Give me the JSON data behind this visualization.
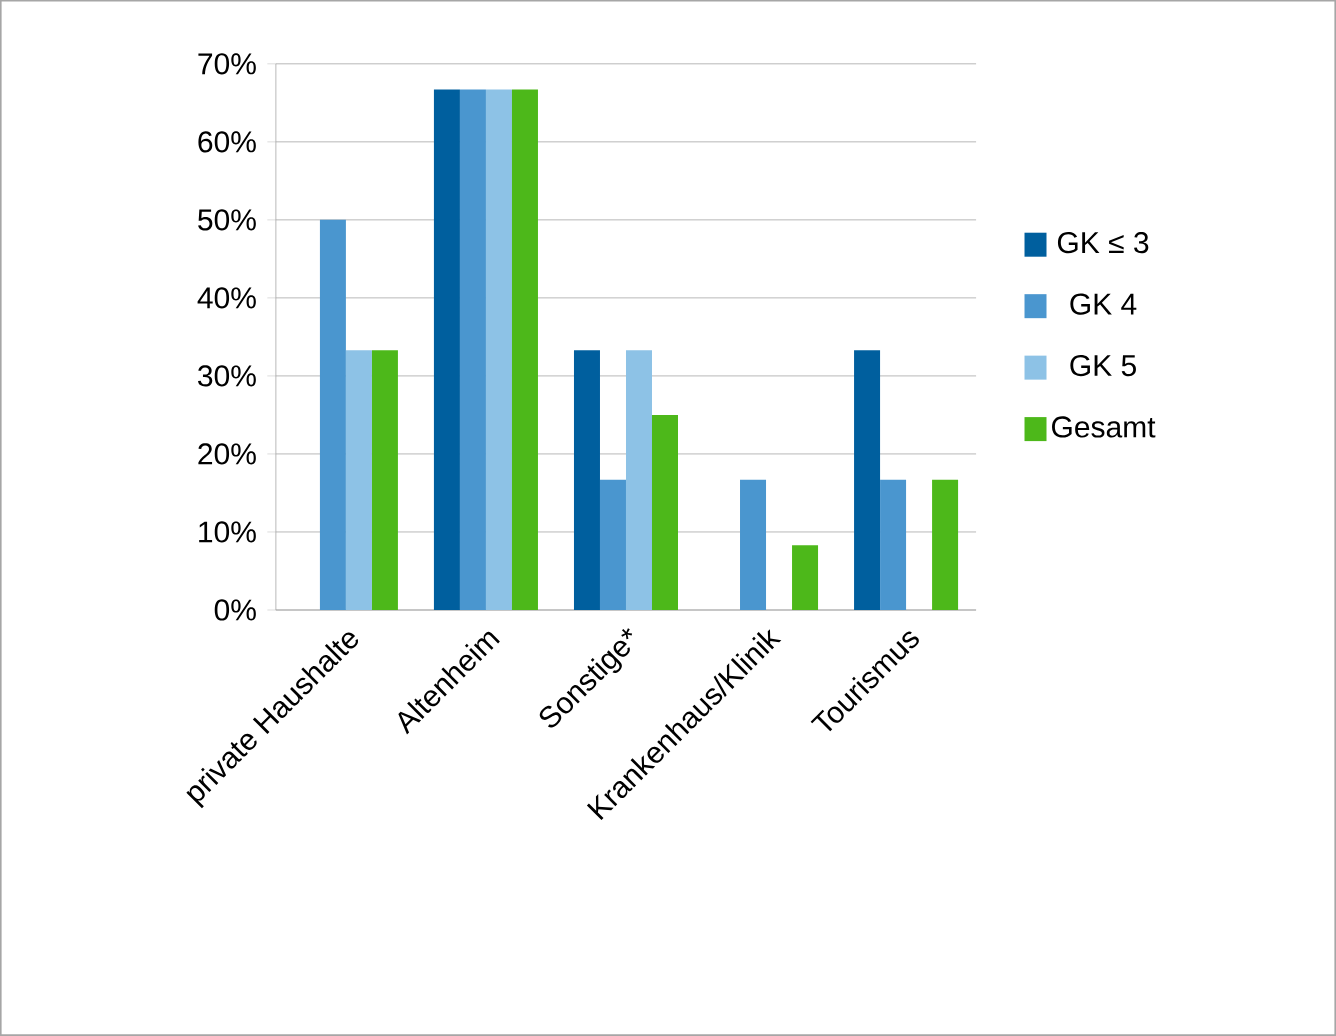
{
  "chart_data": {
    "type": "bar",
    "categories": [
      "private Haushalte",
      "Altenheim",
      "Sonstige*",
      "Krankenhaus/Klinik",
      "Tourismus"
    ],
    "series": [
      {
        "name": "GK ≤ 3",
        "color": "#005f9e",
        "values": [
          0,
          66.7,
          33.3,
          0,
          33.3
        ]
      },
      {
        "name": "GK 4",
        "color": "#4a96cf",
        "values": [
          50,
          66.7,
          16.7,
          16.7,
          16.7
        ]
      },
      {
        "name": "GK 5",
        "color": "#8dc2e6",
        "values": [
          33.3,
          66.7,
          33.3,
          0,
          0
        ]
      },
      {
        "name": "Gesamt",
        "color": "#4db81a",
        "values": [
          33.3,
          66.7,
          25,
          8.3,
          16.7
        ]
      }
    ],
    "ylim": [
      0,
      70
    ],
    "yticks": [
      {
        "value": 0,
        "label": "0%"
      },
      {
        "value": 10,
        "label": "10%"
      },
      {
        "value": 20,
        "label": "20%"
      },
      {
        "value": 30,
        "label": "30%"
      },
      {
        "value": 40,
        "label": "40%"
      },
      {
        "value": 50,
        "label": "50%"
      },
      {
        "value": 60,
        "label": "60%"
      },
      {
        "value": 70,
        "label": "70%"
      }
    ],
    "grid": "y",
    "legend": "right"
  }
}
